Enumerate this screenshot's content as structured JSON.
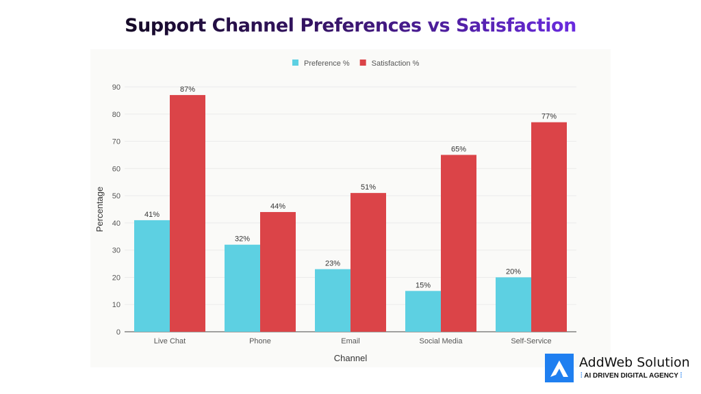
{
  "chart_data": {
    "type": "bar",
    "title": "Support Channel Preferences vs Satisfaction",
    "xlabel": "Channel",
    "ylabel": "Percentage",
    "ylim": [
      0,
      90
    ],
    "yticks": [
      0,
      10,
      20,
      30,
      40,
      50,
      60,
      70,
      80,
      90
    ],
    "grid": true,
    "legend_placement": "top-center",
    "categories": [
      "Live Chat",
      "Phone",
      "Email",
      "Social Media",
      "Self-Service"
    ],
    "series": [
      {
        "name": "Preference %",
        "color": "#5dd0e2",
        "values": [
          41,
          32,
          23,
          15,
          20
        ],
        "labels": [
          "41%",
          "32%",
          "23%",
          "15%",
          "20%"
        ]
      },
      {
        "name": "Satisfaction %",
        "color": "#db4448",
        "values": [
          87,
          44,
          51,
          65,
          77
        ],
        "labels": [
          "87%",
          "44%",
          "51%",
          "65%",
          "77%"
        ]
      }
    ]
  },
  "logo": {
    "name": "AddWeb Solution",
    "tagline": "AI DRIVEN DIGITAL AGENCY"
  }
}
